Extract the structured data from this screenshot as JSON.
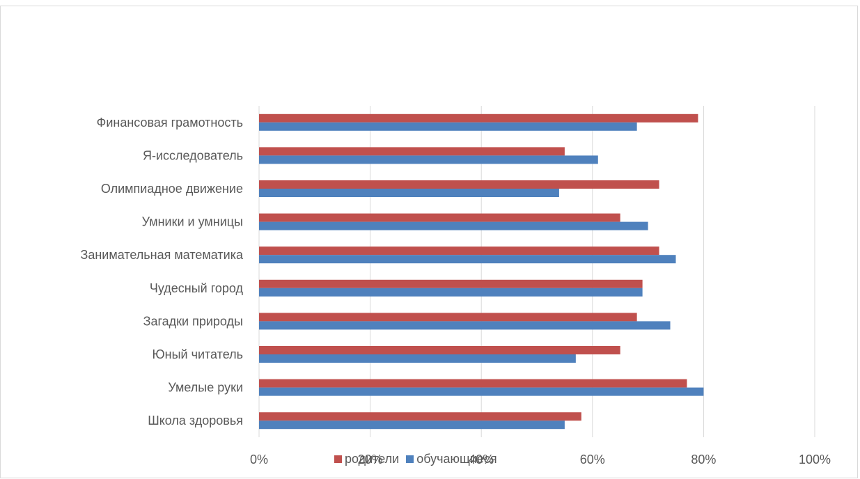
{
  "chart_data": {
    "type": "bar",
    "orientation": "horizontal",
    "categories": [
      "Финансовая грамотность",
      "Я-исследователь",
      "Олимпиадное движение",
      "Умники и умницы",
      "Занимательная математика",
      "Чудесный город",
      "Загадки природы",
      "Юный читатель",
      "Умелые руки",
      "Школа здоровья"
    ],
    "series": [
      {
        "name": "родители",
        "color": "#c0504d",
        "values": [
          79,
          55,
          72,
          65,
          72,
          69,
          68,
          65,
          77,
          58
        ]
      },
      {
        "name": "обучающиеся",
        "color": "#4f81bd",
        "values": [
          68,
          61,
          54,
          70,
          75,
          69,
          74,
          57,
          80,
          55
        ]
      }
    ],
    "xlim": [
      0,
      100
    ],
    "xticks": [
      "0%",
      "20%",
      "40%",
      "60%",
      "80%",
      "100%"
    ],
    "grid": true,
    "legend_position": "bottom"
  }
}
